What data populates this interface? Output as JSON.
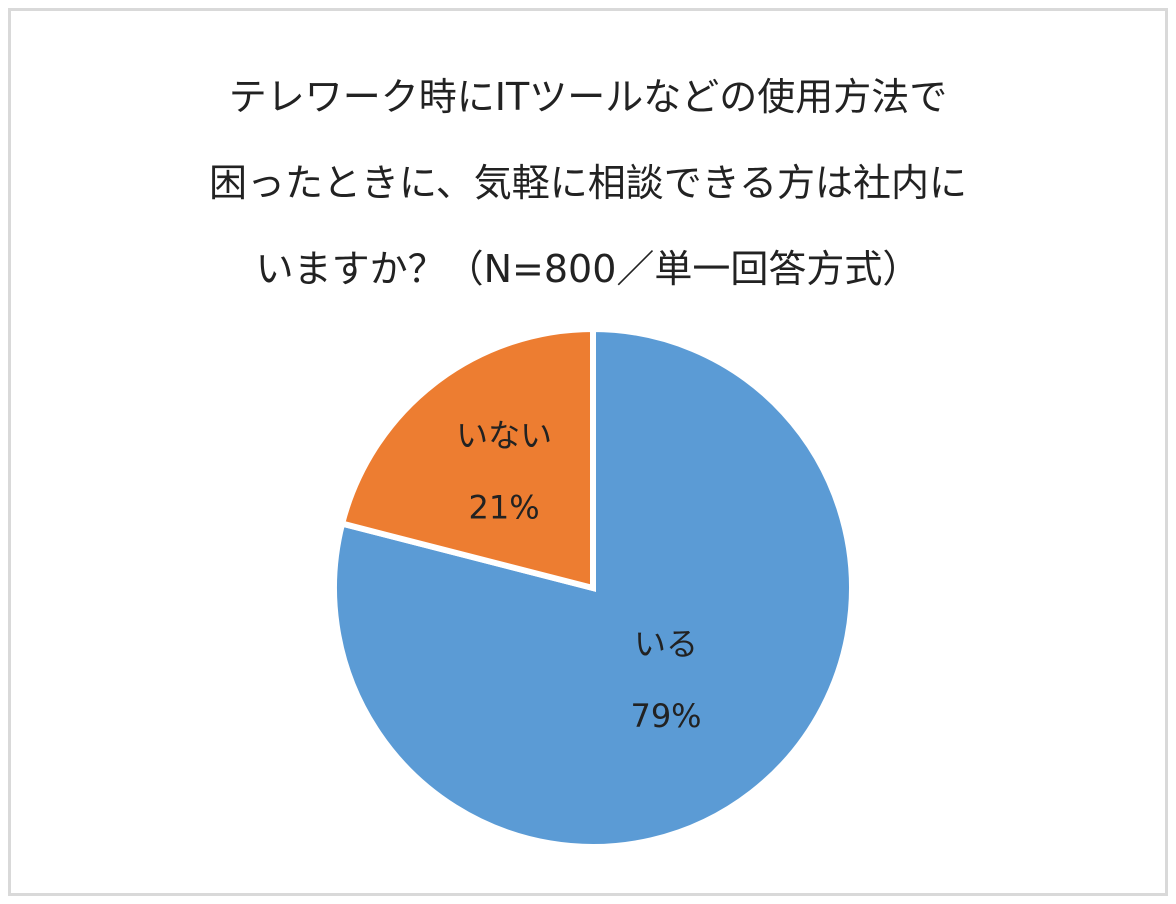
{
  "chart_data": {
    "type": "pie",
    "title": "テレワーク時にITツールなどの使用方法で\n困ったときに、気軽に相談できる方は社内に\nいますか？（N=800／単一回答方式）",
    "categories": [
      "いる",
      "いない"
    ],
    "values": [
      79,
      21
    ],
    "value_labels": [
      "79%",
      "21%"
    ],
    "colors": [
      "#5b9bd5",
      "#ed7d31"
    ]
  }
}
